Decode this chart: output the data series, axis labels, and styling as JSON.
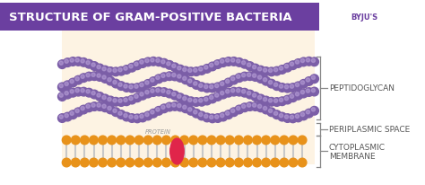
{
  "title": "STRUCTURE OF GRAM-POSITIVE BACTERIA",
  "title_bg": "#6b3fa0",
  "title_color": "#ffffff",
  "bg_color": "#ffffff",
  "diagram_bg": "#fdf3e3",
  "peptidoglycan_color": "#7b5ea7",
  "peptidoglycan_light": "#b8a0d8",
  "membrane_top_color": "#e8921a",
  "membrane_mid_color": "#c8c8c8",
  "protein_color": "#e0254a",
  "labels": {
    "peptidoglycan": "PEPTIDOGLYCAN",
    "periplasmic": "PERIPLASMIC SPACE",
    "cytoplasmic": "CYTOPLASMIC\nMEMBRANE",
    "protein": "PROTEIN"
  },
  "label_color": "#555555",
  "bracket_color": "#888888"
}
